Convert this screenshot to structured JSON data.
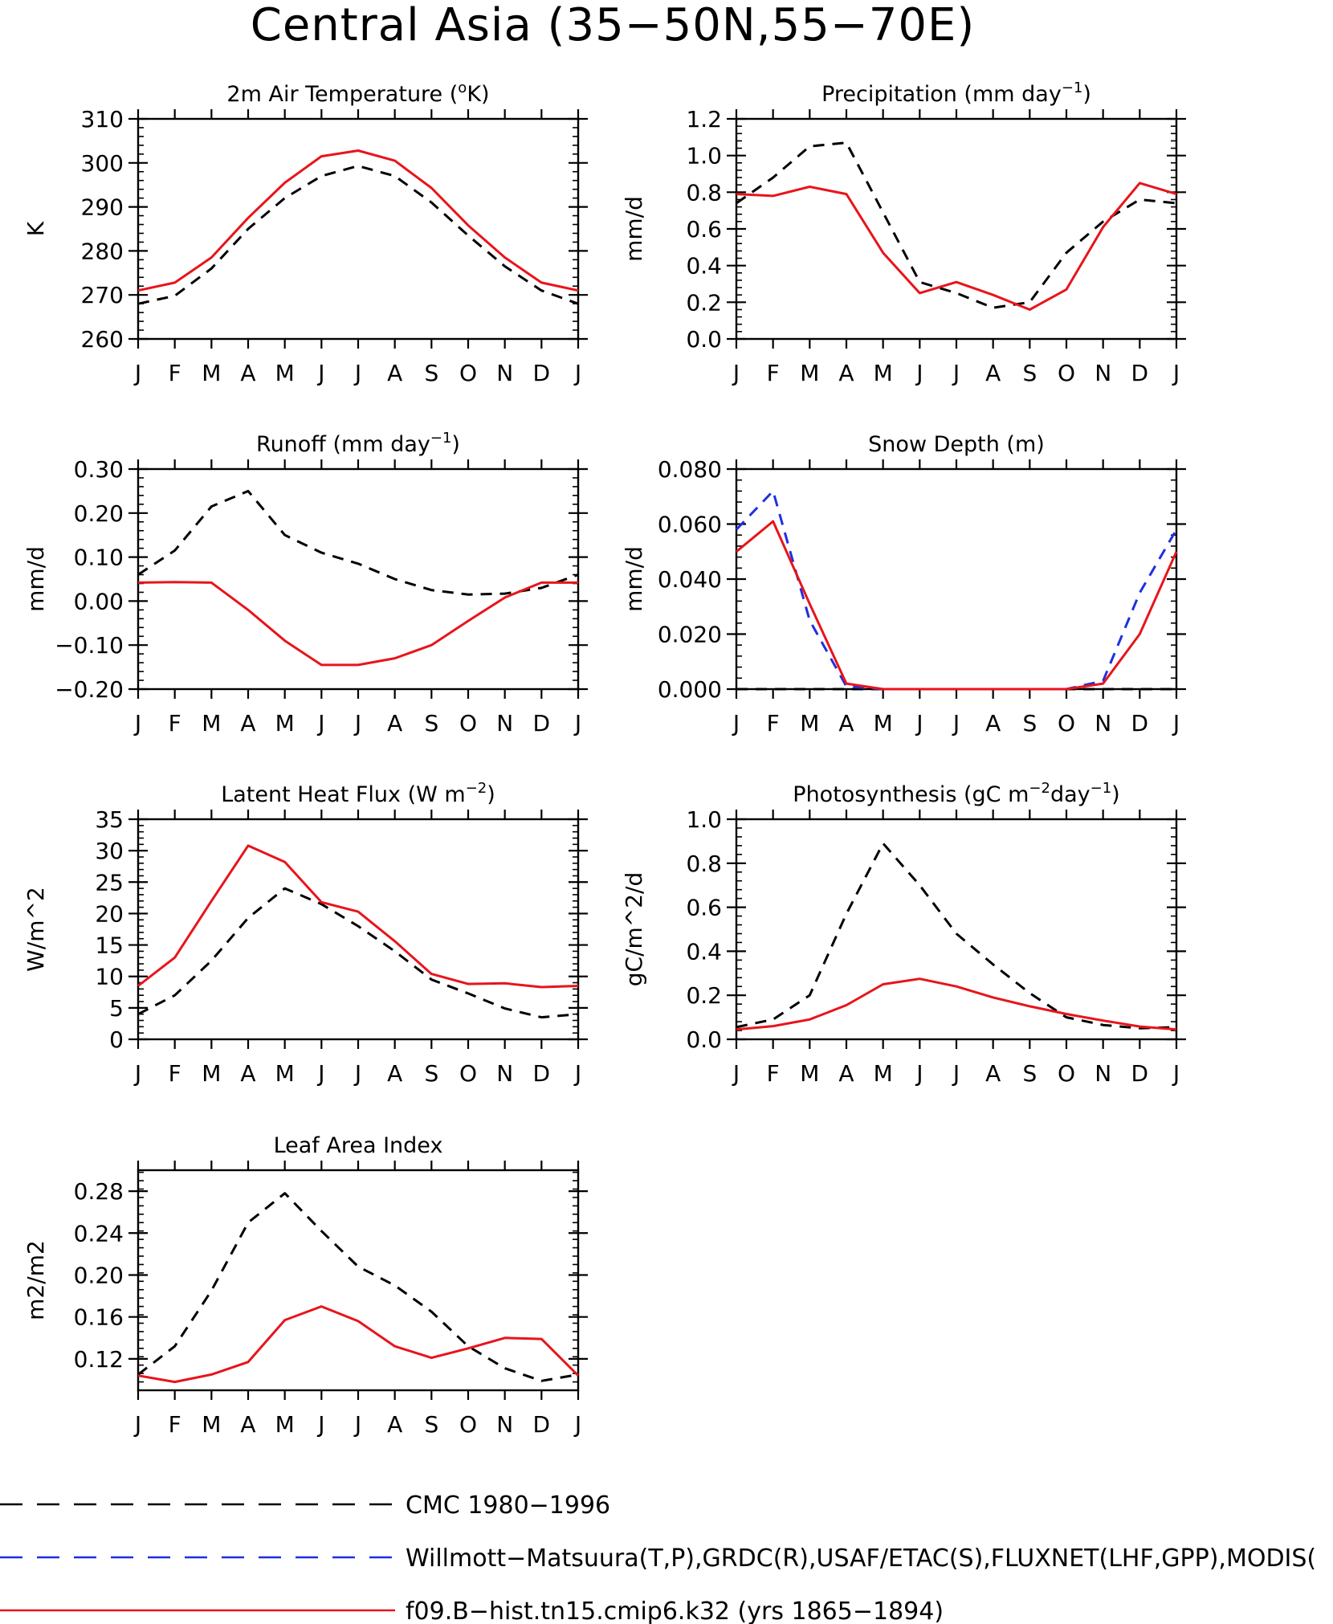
{
  "title": "Central Asia (35−50N,55−70E)",
  "months": [
    "J",
    "F",
    "M",
    "A",
    "M",
    "J",
    "J",
    "A",
    "S",
    "O",
    "N",
    "D",
    "J"
  ],
  "colors": {
    "cmc": "#000000",
    "obs": "#1f2fe0",
    "model": "#e8141b"
  },
  "legend": [
    {
      "label": "CMC 1980−1996",
      "color": "#000000",
      "dash": true
    },
    {
      "label": "Willmott−Matsuura(T,P),GRDC(R),USAF/ETAC(S),FLUXNET(LHF,GPP),MODIS(",
      "color": "#1f2fe0",
      "dash": true
    },
    {
      "label": "f09.B−hist.tn15.cmip6.k32 (yrs 1865−1894)",
      "color": "#e8141b",
      "dash": false
    }
  ],
  "chart_data": [
    {
      "type": "line",
      "title_parts": [
        [
          "2m Air Temperature (",
          ""
        ],
        [
          "o",
          "sup"
        ],
        [
          "K)",
          ""
        ]
      ],
      "ylabel": "K",
      "ylim": [
        260,
        310
      ],
      "yticks": [
        "260",
        "270",
        "280",
        "290",
        "300",
        "310"
      ],
      "series": [
        {
          "name": "CMC 1980−1996",
          "color": "#000000",
          "dash": true,
          "values": [
            268.0,
            269.8,
            276.0,
            285.0,
            292.0,
            297.0,
            299.3,
            297.0,
            291.0,
            283.5,
            276.5,
            271.0,
            268.0
          ]
        },
        {
          "name": "f09.B−hist.tn15.cmip6.k32 (yrs 1865−1894)",
          "color": "#e8141b",
          "dash": false,
          "values": [
            271.0,
            272.8,
            278.5,
            287.5,
            295.5,
            301.5,
            302.8,
            300.5,
            294.3,
            285.8,
            278.5,
            272.8,
            271.0
          ]
        }
      ]
    },
    {
      "type": "line",
      "title_parts": [
        [
          "Precipitation (mm day",
          ""
        ],
        [
          "−1",
          "sup"
        ],
        [
          ")",
          ""
        ]
      ],
      "ylabel": "mm/d",
      "ylim": [
        0.0,
        1.2
      ],
      "yticks": [
        "0.0",
        "0.2",
        "0.4",
        "0.6",
        "0.8",
        "1.0",
        "1.2"
      ],
      "series": [
        {
          "name": "CMC 1980−1996",
          "color": "#000000",
          "dash": true,
          "values": [
            0.74,
            0.88,
            1.05,
            1.07,
            0.69,
            0.31,
            0.25,
            0.17,
            0.2,
            0.47,
            0.64,
            0.76,
            0.74
          ]
        },
        {
          "name": "f09.B−hist.tn15.cmip6.k32 (yrs 1865−1894)",
          "color": "#e8141b",
          "dash": false,
          "values": [
            0.79,
            0.78,
            0.83,
            0.79,
            0.47,
            0.25,
            0.31,
            0.24,
            0.16,
            0.27,
            0.61,
            0.85,
            0.79
          ]
        }
      ]
    },
    {
      "type": "line",
      "title_parts": [
        [
          "Runoff (mm day",
          ""
        ],
        [
          "−1",
          "sup"
        ],
        [
          ")",
          ""
        ]
      ],
      "ylabel": "mm/d",
      "ylim": [
        -0.2,
        0.3
      ],
      "yticks": [
        "−0.20",
        "−0.10",
        "0.00",
        "0.10",
        "0.20",
        "0.30"
      ],
      "series": [
        {
          "name": "CMC 1980−1996",
          "color": "#000000",
          "dash": true,
          "values": [
            0.06,
            0.115,
            0.215,
            0.25,
            0.15,
            0.11,
            0.085,
            0.05,
            0.025,
            0.015,
            0.017,
            0.03,
            0.06
          ]
        },
        {
          "name": "f09.B−hist.tn15.cmip6.k32 (yrs 1865−1894)",
          "color": "#e8141b",
          "dash": false,
          "values": [
            0.042,
            0.043,
            0.042,
            -0.02,
            -0.09,
            -0.145,
            -0.145,
            -0.13,
            -0.1,
            -0.045,
            0.008,
            0.042,
            0.042
          ]
        }
      ]
    },
    {
      "type": "line",
      "title_parts": [
        [
          "Snow Depth (m)",
          ""
        ]
      ],
      "ylabel": "mm/d",
      "ylim": [
        0.0,
        0.08
      ],
      "yticks": [
        "0.000",
        "0.020",
        "0.040",
        "0.060",
        "0.080"
      ],
      "series": [
        {
          "name": "CMC 1980−1996",
          "color": "#000000",
          "dash": true,
          "values": [
            0,
            0,
            0,
            0,
            0,
            0,
            0,
            0,
            0,
            0,
            0,
            0,
            0
          ]
        },
        {
          "name": "Willmott−Matsuura(T,P),GRDC(R),USAF/ETAC(S),FLUXNET(LHF,GPP),MODIS(",
          "color": "#1f2fe0",
          "dash": true,
          "values": [
            0.058,
            0.072,
            0.025,
            0.001,
            0,
            0,
            0,
            0,
            0,
            0,
            0.003,
            0.035,
            0.058
          ]
        },
        {
          "name": "f09.B−hist.tn15.cmip6.k32 (yrs 1865−1894)",
          "color": "#e8141b",
          "dash": false,
          "values": [
            0.05,
            0.061,
            0.031,
            0.002,
            0,
            0,
            0,
            0,
            0,
            0,
            0.002,
            0.02,
            0.05
          ]
        }
      ]
    },
    {
      "type": "line",
      "title_parts": [
        [
          "Latent Heat Flux (W m",
          ""
        ],
        [
          "−2",
          "sup"
        ],
        [
          ")",
          ""
        ]
      ],
      "ylabel": "W/m^2",
      "ylim": [
        0,
        35
      ],
      "yticks": [
        "0",
        "5",
        "10",
        "15",
        "20",
        "25",
        "30",
        "35"
      ],
      "series": [
        {
          "name": "CMC 1980−1996",
          "color": "#000000",
          "dash": true,
          "values": [
            4.0,
            7.0,
            12.5,
            19.3,
            24.0,
            21.5,
            18.0,
            14.0,
            9.5,
            7.3,
            4.9,
            3.5,
            4.0
          ]
        },
        {
          "name": "f09.B−hist.tn15.cmip6.k32 (yrs 1865−1894)",
          "color": "#e8141b",
          "dash": false,
          "values": [
            8.5,
            13.0,
            22.0,
            30.8,
            28.2,
            21.8,
            20.3,
            15.6,
            10.4,
            8.8,
            8.9,
            8.3,
            8.5
          ]
        }
      ]
    },
    {
      "type": "line",
      "title_parts": [
        [
          "Photosynthesis (gC m",
          ""
        ],
        [
          "−2",
          "sup"
        ],
        [
          "day",
          ""
        ],
        [
          "−1",
          "sup"
        ],
        [
          ")",
          ""
        ]
      ],
      "ylabel": "gC/m^2/d",
      "ylim": [
        0.0,
        1.0
      ],
      "yticks": [
        "0.0",
        "0.2",
        "0.4",
        "0.6",
        "0.8",
        "1.0"
      ],
      "series": [
        {
          "name": "CMC 1980−1996",
          "color": "#000000",
          "dash": true,
          "values": [
            0.055,
            0.09,
            0.2,
            0.57,
            0.89,
            0.7,
            0.48,
            0.34,
            0.21,
            0.1,
            0.065,
            0.05,
            0.055
          ]
        },
        {
          "name": "f09.B−hist.tn15.cmip6.k32 (yrs 1865−1894)",
          "color": "#e8141b",
          "dash": false,
          "values": [
            0.045,
            0.06,
            0.09,
            0.155,
            0.25,
            0.275,
            0.24,
            0.19,
            0.15,
            0.115,
            0.085,
            0.058,
            0.045
          ]
        }
      ]
    },
    {
      "type": "line",
      "title_parts": [
        [
          "Leaf Area Index",
          ""
        ]
      ],
      "ylabel": "m2/m2",
      "ylim": [
        0.09,
        0.3
      ],
      "yticks": [
        "0.12",
        "0.16",
        "0.20",
        "0.24",
        "0.28"
      ],
      "series": [
        {
          "name": "CMC 1980−1996",
          "color": "#000000",
          "dash": true,
          "values": [
            0.105,
            0.132,
            0.185,
            0.25,
            0.278,
            0.242,
            0.208,
            0.19,
            0.165,
            0.132,
            0.111,
            0.099,
            0.105
          ]
        },
        {
          "name": "f09.B−hist.tn15.cmip6.k32 (yrs 1865−1894)",
          "color": "#e8141b",
          "dash": false,
          "values": [
            0.104,
            0.098,
            0.105,
            0.117,
            0.157,
            0.17,
            0.156,
            0.132,
            0.121,
            0.13,
            0.14,
            0.139,
            0.104
          ]
        }
      ]
    }
  ]
}
